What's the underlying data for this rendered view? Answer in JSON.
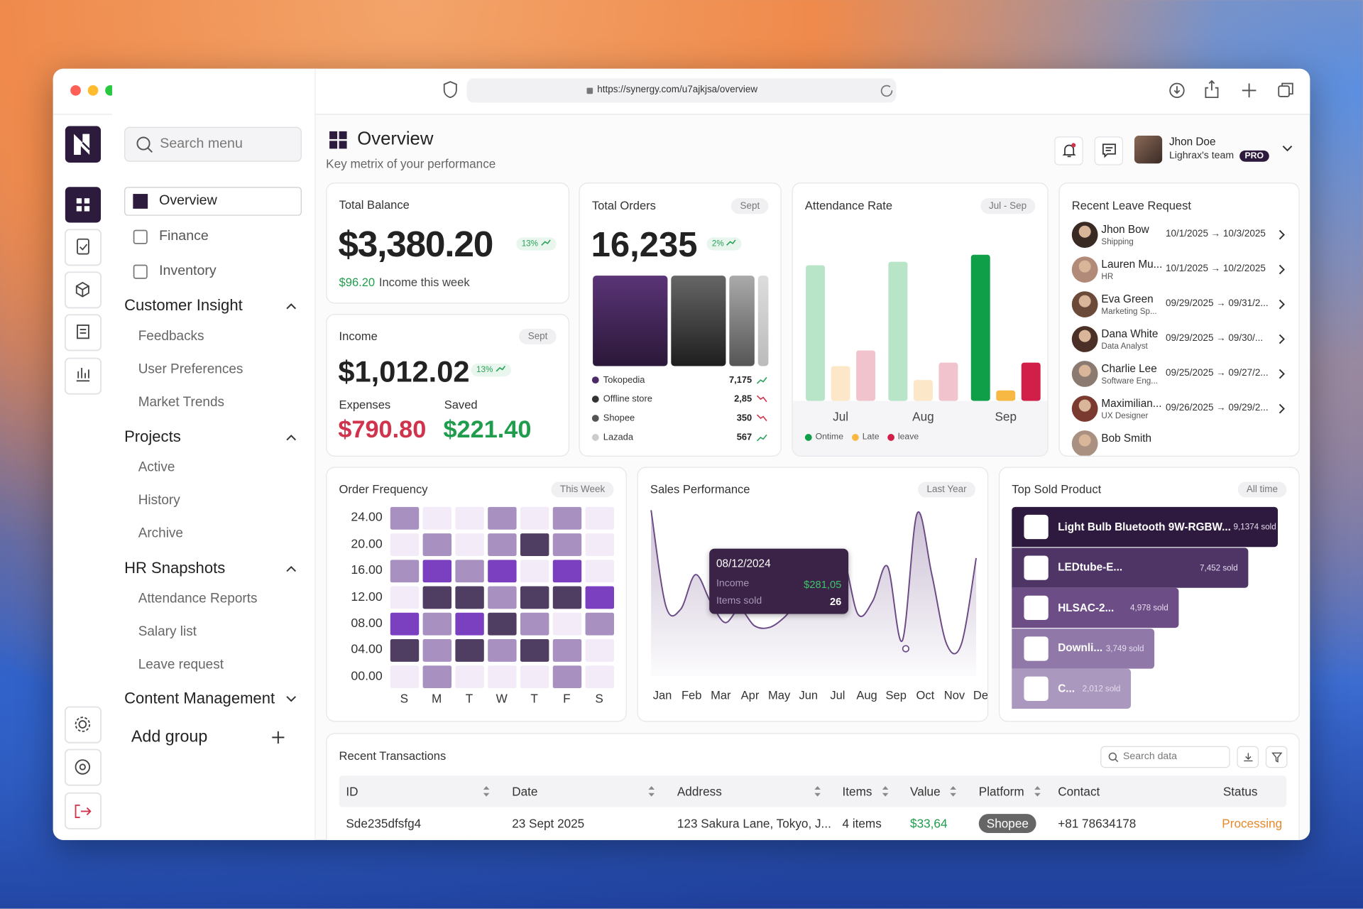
{
  "browser": {
    "url": "https://synergy.com/u7ajkjsa/overview"
  },
  "sidebar": {
    "search_placeholder": "Search menu",
    "items": [
      "Overview",
      "Finance",
      "Inventory"
    ],
    "groups": [
      {
        "title": "Customer Insight",
        "items": [
          "Feedbacks",
          "User Preferences",
          "Market Trends"
        ]
      },
      {
        "title": "Projects",
        "items": [
          "Active",
          "History",
          "Archive"
        ]
      },
      {
        "title": "HR Snapshots",
        "items": [
          "Attendance Reports",
          "Salary list",
          "Leave request"
        ]
      },
      {
        "title": "Content Management",
        "items": []
      }
    ],
    "add_group": "Add group"
  },
  "header": {
    "title": "Overview",
    "subtitle": "Key metrix of your performance",
    "user": {
      "name": "Jhon Doe",
      "team": "Lighrax's team",
      "badge": "PRO"
    }
  },
  "total_balance": {
    "title": "Total Balance",
    "value": "$3,380.20",
    "change": "13%",
    "income_amount": "$96.20",
    "income_text": "Income this week"
  },
  "income": {
    "title": "Income",
    "period": "Sept",
    "value": "$1,012.02",
    "change": "13%",
    "expenses_label": "Expenses",
    "expenses": "$790.80",
    "saved_label": "Saved",
    "saved": "$221.40"
  },
  "total_orders": {
    "title": "Total Orders",
    "period": "Sept",
    "value": "16,235",
    "change": "2%",
    "channels": [
      {
        "name": "Tokopedia",
        "value": "7,175",
        "color": "#4b2a66",
        "trend": "up"
      },
      {
        "name": "Offline store",
        "value": "2,85",
        "color": "#333333",
        "trend": "down"
      },
      {
        "name": "Shopee",
        "value": "350",
        "color": "#555555",
        "trend": "down"
      },
      {
        "name": "Lazada",
        "value": "567",
        "color": "#cccccc",
        "trend": "up"
      }
    ]
  },
  "leave_requests": {
    "title": "Recent Leave Request",
    "rows": [
      {
        "name": "Jhon Bow",
        "role": "Shipping",
        "dates": "10/1/2025 → 10/3/2025"
      },
      {
        "name": "Lauren Mu...",
        "role": "HR",
        "dates": "10/1/2025 → 10/2/2025"
      },
      {
        "name": "Eva Green",
        "role": "Marketing Sp...",
        "dates": "09/29/2025 → 09/31/2..."
      },
      {
        "name": "Dana White",
        "role": "Data Analyst",
        "dates": "09/29/2025 → 09/30/..."
      },
      {
        "name": "Charlie Lee",
        "role": "Software Eng...",
        "dates": "09/25/2025 → 09/27/2..."
      },
      {
        "name": "Maximilian...",
        "role": "UX Designer",
        "dates": "09/26/2025 → 09/29/2..."
      },
      {
        "name": "Bob Smith",
        "role": "",
        "dates": ""
      }
    ]
  },
  "chart_data": [
    {
      "type": "bar",
      "title": "Attendance Rate",
      "period": "Jul - Sep",
      "categories": [
        "Jul",
        "Aug",
        "Sep"
      ],
      "series": [
        {
          "name": "Ontime",
          "color": "#0e9f48",
          "muted_color": "#b8e4c8",
          "values": [
            78,
            80,
            84
          ]
        },
        {
          "name": "Late",
          "color": "#f7b944",
          "muted_color": "#fce7c9",
          "values": [
            20,
            12,
            6
          ]
        },
        {
          "name": "leave",
          "color": "#d21f4a",
          "muted_color": "#f1c4cd",
          "values": [
            29,
            22,
            22
          ]
        }
      ],
      "highlight": 2,
      "ylim": [
        0,
        100
      ],
      "legend": "bottom-left"
    },
    {
      "type": "heatmap",
      "title": "Order Frequency",
      "period": "This Week",
      "x": [
        "S",
        "M",
        "T",
        "W",
        "T",
        "F",
        "S"
      ],
      "yticks": [
        {
          "value": 24,
          "label": "24.00"
        },
        {
          "value": 20,
          "label": "20.00"
        },
        {
          "value": 16,
          "label": "16.00"
        },
        {
          "value": 12,
          "label": "12.00"
        },
        {
          "value": 8,
          "label": "08.00"
        },
        {
          "value": 4,
          "label": "04.00"
        },
        {
          "value": 0,
          "label": "00.00"
        }
      ],
      "values": [
        [
          2,
          1,
          1,
          2,
          1,
          2,
          1
        ],
        [
          1,
          2,
          1,
          2,
          4,
          2,
          1
        ],
        [
          2,
          3,
          2,
          3,
          1,
          3,
          1
        ],
        [
          1,
          4,
          4,
          2,
          4,
          4,
          3
        ],
        [
          3,
          2,
          3,
          4,
          2,
          1,
          2
        ],
        [
          4,
          2,
          4,
          2,
          4,
          2,
          1
        ],
        [
          1,
          2,
          1,
          1,
          1,
          2,
          1
        ]
      ],
      "colors": [
        "#f8f3fb",
        "#f4ebf9",
        "#a891c0",
        "#7b40c0",
        "#4f3e62"
      ]
    },
    {
      "type": "line",
      "title": "Sales Performance",
      "period": "Last Year",
      "categories": [
        "Jan",
        null,
        "Feb",
        null,
        "Mar",
        null,
        "Apr",
        null,
        "May",
        null,
        "Jun",
        null,
        "Jul",
        null,
        "Aug",
        null,
        "Sep",
        null,
        "Oct",
        null,
        "Nov",
        null,
        "Des"
      ],
      "values": [
        97,
        39,
        37,
        58,
        42,
        29,
        37,
        27,
        26,
        32,
        42,
        47,
        63,
        68,
        34,
        42,
        63,
        18,
        95,
        58,
        16,
        16,
        68
      ],
      "color": "#6b4a86",
      "ylim": [
        0,
        100
      ],
      "tooltip": {
        "date": "08/12/2024",
        "income_label": "Income",
        "income": "$281,05",
        "items_label": "Items sold",
        "items": 26
      }
    }
  ],
  "top_products": {
    "title": "Top Sold Product",
    "period": "All time",
    "items": [
      {
        "name": "Light Bulb Bluetooth 9W-RGBW...",
        "sold": "9,1374 sold"
      },
      {
        "name": "LEDtube-E...",
        "sold": "7,452 sold"
      },
      {
        "name": "HLSAC-2...",
        "sold": "4,978 sold"
      },
      {
        "name": "Downli...",
        "sold": "3,749 sold"
      },
      {
        "name": "C...",
        "sold": "2,012 sold"
      }
    ]
  },
  "transactions": {
    "title": "Recent Transactions",
    "search_placeholder": "Search data",
    "columns": [
      "ID",
      "Date",
      "Address",
      "Items",
      "Value",
      "Platform",
      "Contact",
      "Status"
    ],
    "rows": [
      [
        "Sde235dfsfg4",
        "23 Sept 2025",
        "123 Sakura Lane, Tokyo, J...",
        "4 items",
        "$33,64",
        "Shopee",
        "+81 78634178",
        "Processing"
      ]
    ]
  }
}
